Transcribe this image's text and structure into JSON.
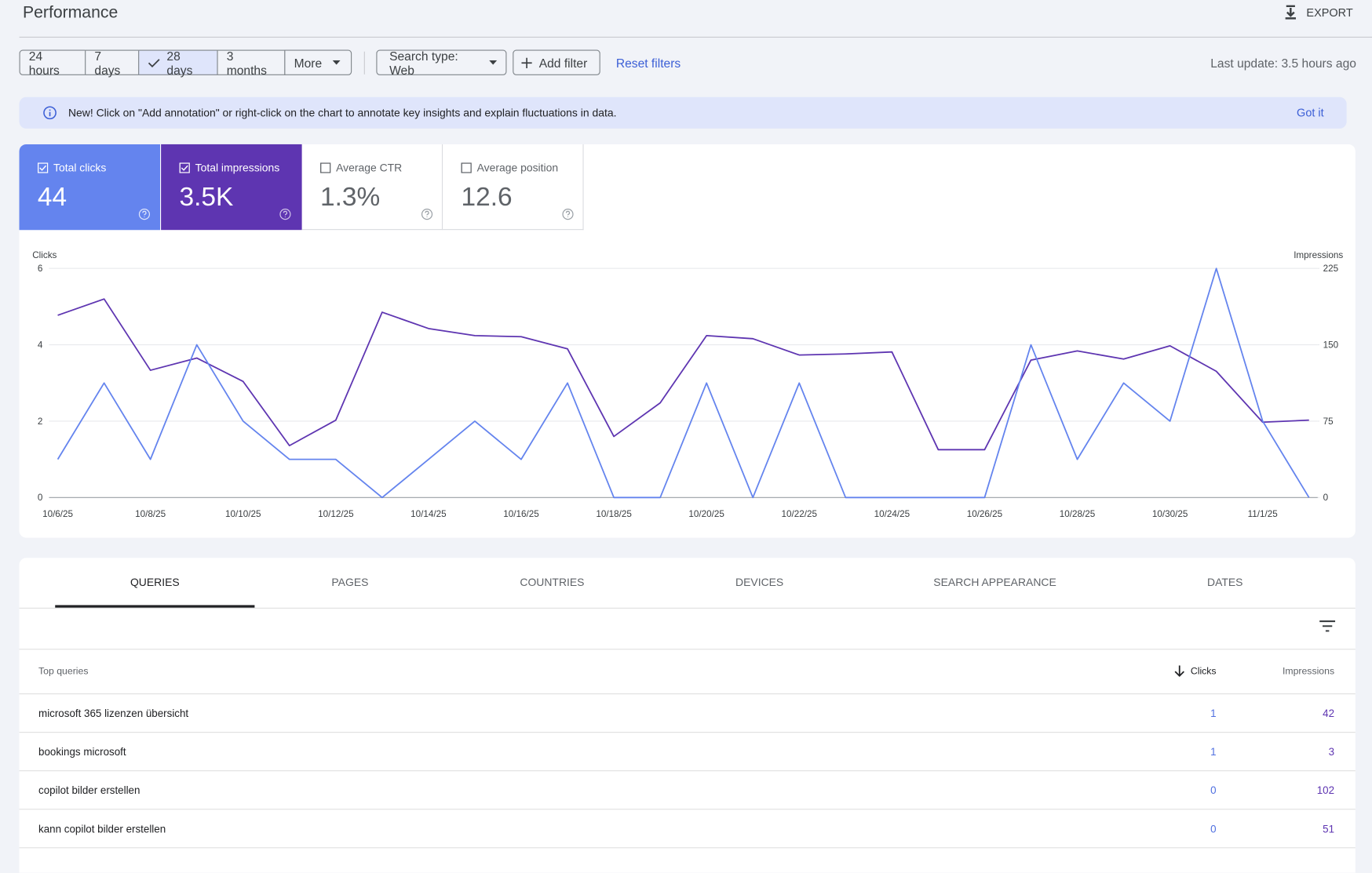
{
  "header": {
    "title": "Performance",
    "export": "EXPORT"
  },
  "filters": {
    "periods": [
      "24 hours",
      "7 days",
      "28 days",
      "3 months"
    ],
    "more": "More",
    "search_type": "Search type: Web",
    "add_filter": "Add filter",
    "reset": "Reset filters",
    "last_update": "Last update: 3.5 hours ago"
  },
  "banner": {
    "text": "New! Click on \"Add annotation\" or right-click on the chart to annotate key insights and explain fluctuations in data.",
    "action": "Got it"
  },
  "metrics": [
    {
      "label": "Average CTR",
      "value": "1.3%"
    },
    {
      "label": "Average position",
      "value": "12.6"
    }
  ],
  "chart_data": {
    "type": "line",
    "categories": [
      "10/6/25",
      null,
      "10/8/25",
      null,
      "10/10/25",
      null,
      "10/12/25",
      null,
      "10/14/25",
      null,
      "10/16/25",
      null,
      "10/18/25",
      null,
      "10/20/25",
      null,
      "10/22/25",
      null,
      "10/24/25",
      null,
      "10/26/25",
      null,
      "10/28/25",
      null,
      "10/30/25",
      null,
      "11/1/25",
      null
    ],
    "ylabel": "Clicks",
    "y2label": "Impressions",
    "ylim": [
      0,
      6
    ],
    "yticks": [
      0,
      2,
      4,
      6
    ],
    "y2lim": [
      0,
      225
    ],
    "y2ticks": [
      0,
      75,
      150,
      225
    ],
    "grid": true,
    "series": [
      {
        "name": "Total clicks",
        "total": "44",
        "color": "#6484ee",
        "values": [
          1,
          3,
          1,
          4,
          2,
          1,
          1,
          0,
          1,
          2,
          1,
          3,
          0,
          0,
          3,
          0,
          3,
          0,
          0,
          0,
          0,
          4,
          1,
          3,
          2,
          6,
          2,
          0
        ]
      },
      {
        "name": "Total impressions",
        "total": "3.5K",
        "color": "#5e35b1",
        "axis": "y2",
        "values": [
          179,
          195,
          125,
          137,
          114,
          51,
          76,
          182,
          166,
          159,
          158,
          146,
          60,
          93,
          159,
          156,
          140,
          141,
          143,
          47,
          47,
          135,
          144,
          136,
          149,
          124,
          74,
          76
        ]
      }
    ]
  },
  "tabs": [
    "QUERIES",
    "PAGES",
    "COUNTRIES",
    "DEVICES",
    "SEARCH APPEARANCE",
    "DATES"
  ],
  "table": {
    "headers": [
      "Top queries",
      "Clicks",
      "Impressions"
    ],
    "rows": [
      [
        "microsoft 365 lizenzen übersicht",
        "1",
        "42"
      ],
      [
        "bookings microsoft",
        "1",
        "3"
      ],
      [
        "copilot bilder erstellen",
        "0",
        "102"
      ],
      [
        "kann copilot bilder erstellen",
        "0",
        "51"
      ]
    ]
  }
}
